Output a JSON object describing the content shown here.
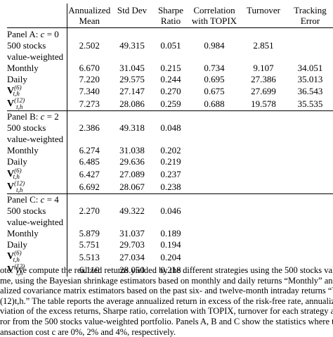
{
  "top_fragment": "",
  "header": {
    "col_labels": [
      "",
      "Annualized Mean",
      "Std Dev",
      "Sharpe Ratio",
      "Correlation with TOPIX",
      "Turnover",
      "Tracking Error"
    ]
  },
  "panels": [
    {
      "title": "Panel A: c = 0",
      "rows": [
        {
          "label_line1": "500 stocks",
          "label_line2": "value-weighted",
          "mean": "2.502",
          "std": "49.315",
          "sharpe": "0.051",
          "corr": "0.984",
          "turnover": "2.851",
          "te": ""
        },
        {
          "label": "Monthly",
          "mean": "6.670",
          "std": "31.045",
          "sharpe": "0.215",
          "corr": "0.734",
          "turnover": "9.107",
          "te": "34.051"
        },
        {
          "label": "Daily",
          "mean": "7.220",
          "std": "29.575",
          "sharpe": "0.244",
          "corr": "0.695",
          "turnover": "27.386",
          "te": "35.013"
        },
        {
          "label": "V(6)t,h",
          "mean": "7.340",
          "std": "27.147",
          "sharpe": "0.270",
          "corr": "0.675",
          "turnover": "27.699",
          "te": "36.543"
        },
        {
          "label": "V(12)t,h",
          "mean": "7.273",
          "std": "28.086",
          "sharpe": "0.259",
          "corr": "0.688",
          "turnover": "19.578",
          "te": "35.535"
        }
      ]
    },
    {
      "title": "Panel B: c = 2",
      "rows": [
        {
          "label_line1": "500 stocks",
          "label_line2": "value-weighted",
          "mean": "2.386",
          "std": "49.318",
          "sharpe": "0.048",
          "corr": "",
          "turnover": "",
          "te": ""
        },
        {
          "label": "Monthly",
          "mean": "6.274",
          "std": "31.038",
          "sharpe": "0.202",
          "corr": "",
          "turnover": "",
          "te": ""
        },
        {
          "label": "Daily",
          "mean": "6.485",
          "std": "29.636",
          "sharpe": "0.219",
          "corr": "",
          "turnover": "",
          "te": ""
        },
        {
          "label": "V(6)t,h",
          "mean": "6.427",
          "std": "27.089",
          "sharpe": "0.237",
          "corr": "",
          "turnover": "",
          "te": ""
        },
        {
          "label": "V(12)t,h",
          "mean": "6.692",
          "std": "28.067",
          "sharpe": "0.238",
          "corr": "",
          "turnover": "",
          "te": ""
        }
      ]
    },
    {
      "title": "Panel C: c = 4",
      "rows": [
        {
          "label_line1": "500 stocks",
          "label_line2": "value-weighted",
          "mean": "2.270",
          "std": "49.322",
          "sharpe": "0.046",
          "corr": "",
          "turnover": "",
          "te": ""
        },
        {
          "label": "Monthly",
          "mean": "5.879",
          "std": "31.037",
          "sharpe": "0.189",
          "corr": "",
          "turnover": "",
          "te": ""
        },
        {
          "label": "Daily",
          "mean": "5.751",
          "std": "29.703",
          "sharpe": "0.194",
          "corr": "",
          "turnover": "",
          "te": ""
        },
        {
          "label": "V(6)t,h",
          "mean": "5.513",
          "std": "27.034",
          "sharpe": "0.204",
          "corr": "",
          "turnover": "",
          "te": ""
        },
        {
          "label": "V(12)t,h",
          "mean": "6.110",
          "std": "28.050",
          "sharpe": "0.218",
          "corr": "",
          "turnover": "",
          "te": ""
        }
      ]
    }
  ],
  "notes_lines": [
    "ote: We compute the realized returns yielded by the different strategies using the 500 stocks value-weighted",
    "me, using the Bayesian shrinkage estimators based on monthly and daily returns “Monthly” and “Daily” and",
    "alized covariance matrix estimators based on the past six- and twelve-month intraday returns “V(6)t,h” and",
    "(12)t,h.”  The table reports the average annualized return in excess of the risk-free rate, annualized standard",
    "viation of the excess returns, Sharpe ratio, correlation with TOPIX, turnover for each strategy and tracking",
    "ror from the 500 stocks value-weighted portfolio. Panels A, B and C show the statistics where the levels of",
    "ansaction cost c are 0%, 2% and 4%, respectively."
  ]
}
